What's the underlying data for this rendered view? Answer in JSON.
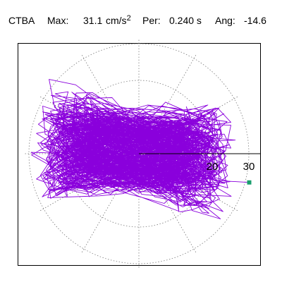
{
  "header": {
    "station": "CTBA",
    "max_label": "Max:",
    "max_value": "31.1",
    "max_unit": "cm/s",
    "max_unit_exp": "2",
    "per_label": "Per:",
    "per_value": "0.240 s",
    "ang_label": "Ang:",
    "ang_value": "-14.6"
  },
  "chart_data": {
    "type": "scatter",
    "title": "CTBA  Max: 31.1 cm/s2  Per: 0.240 s  Ang: -14.6",
    "plot_style": "polar particle-motion orbit",
    "units": "cm/s2",
    "max_amplitude": 31.1,
    "max_angle_deg": -14.6,
    "period_s": 0.24,
    "radial_ticks": [
      10,
      20,
      30
    ],
    "radial_tick_labels": [
      "20",
      "30"
    ],
    "angular_grid_step_deg": 30,
    "grid": true,
    "series": [
      {
        "color": "#8a00dc",
        "trace_points_approx": [
          [
            -6,
            3
          ],
          [
            6,
            -4
          ],
          [
            -10,
            6
          ],
          [
            12,
            -7
          ],
          [
            -14,
            2
          ],
          [
            15,
            5
          ],
          [
            -6,
            -12
          ],
          [
            4,
            11
          ],
          [
            -20,
            5
          ],
          [
            22,
            -8
          ],
          [
            -26,
            6
          ],
          [
            18,
            -14
          ],
          [
            -9,
            13
          ],
          [
            24,
            2
          ],
          [
            -28,
            5
          ],
          [
            20,
            -10
          ],
          [
            -15,
            7
          ],
          [
            28,
            -9
          ],
          [
            -22,
            3
          ],
          [
            11,
            -13
          ],
          [
            -5,
            9
          ],
          [
            30,
            -8
          ],
          [
            -18,
            -6
          ],
          [
            14,
            8
          ],
          [
            -24,
            4
          ],
          [
            8,
            -12
          ]
        ]
      }
    ],
    "max_marker": {
      "r": 31.1,
      "angle_deg": -14.6,
      "color": "#1a9e6e"
    }
  }
}
